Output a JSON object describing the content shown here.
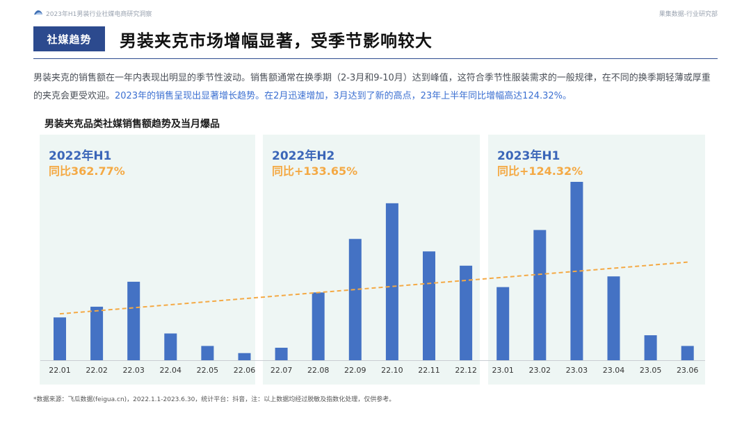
{
  "header": {
    "left_text": "2023年H1男装行业社媒电商研究洞察",
    "right_text": "果集数据-行业研究部"
  },
  "tag": "社媒趋势",
  "title": "男装夹克市场增幅显著，受季节影响较大",
  "description": {
    "part1": "男装夹克的销售额在一年内表现出明显的季节性波动。销售额通常在换季期（2-3月和9-10月）达到峰值，这符合季节性服装需求的一般规律，在不同的换季期轻薄或厚重的夹克会更受欢迎。",
    "part2": "2023年的销售呈现出显著增长趋势。在2月迅速增加，3月达到了新的高点，23年上半年同比增幅高达124.32%。"
  },
  "periods": [
    {
      "label": "2022年H1",
      "yoy": "同比362.77%"
    },
    {
      "label": "2022年H2",
      "yoy": "同比+133.65%"
    },
    {
      "label": "2023年H1",
      "yoy": "同比+124.32%"
    }
  ],
  "source": "*数据来源：飞瓜数据(feigua.cn)，2022.1.1-2023.6.30，统计平台：抖音，注：以上数据均经过脱敏及指数化处理，仅供参考。",
  "colors": {
    "bar": "#4472c4",
    "trend": "#f4a944",
    "axis": "#c9cdd3"
  },
  "chart_data": {
    "type": "bar",
    "title": "男装夹克品类社媒销售额趋势及当月爆品",
    "categories": [
      "22.01",
      "22.02",
      "22.03",
      "22.04",
      "22.05",
      "22.06",
      "22.07",
      "22.08",
      "22.09",
      "22.10",
      "22.11",
      "22.12",
      "23.01",
      "23.02",
      "23.03",
      "23.04",
      "23.05",
      "23.06"
    ],
    "values": [
      24,
      30,
      44,
      15,
      8,
      4,
      7,
      38,
      68,
      88,
      61,
      53,
      41,
      73,
      100,
      47,
      14,
      8
    ],
    "ylim": [
      0,
      100
    ],
    "trendline": {
      "start": 26,
      "end": 55
    },
    "xlabel": "",
    "ylabel": "",
    "grid": false
  }
}
